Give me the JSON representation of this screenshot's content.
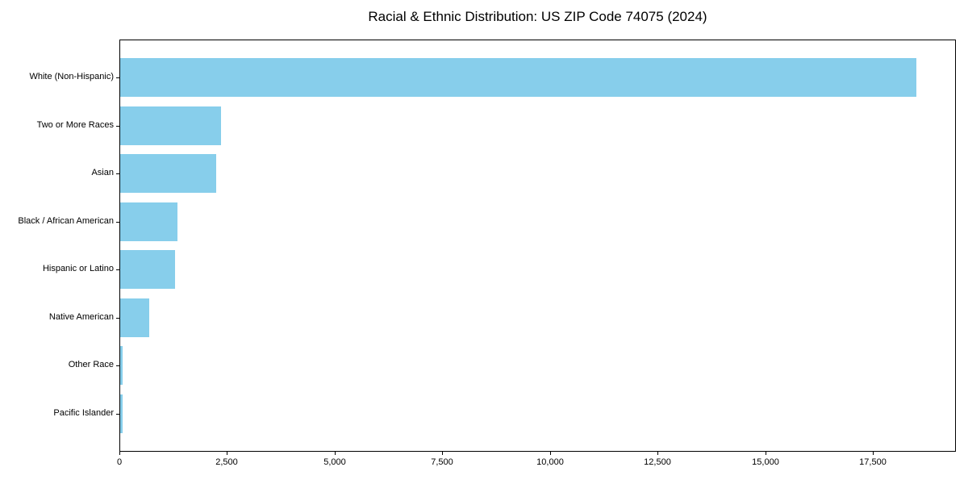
{
  "chart_data": {
    "type": "bar",
    "orientation": "horizontal",
    "title": "Racial & Ethnic Distribution: US ZIP Code 74075 (2024)",
    "categories": [
      "White (Non-Hispanic)",
      "Two or More Races",
      "Asian",
      "Black / African American",
      "Hispanic or Latino",
      "Native American",
      "Other Race",
      "Pacific Islander"
    ],
    "values": [
      18500,
      2340,
      2230,
      1330,
      1270,
      675,
      55,
      50
    ],
    "xlabel": "",
    "ylabel": "",
    "xlim": [
      0,
      19430
    ],
    "x_ticks": [
      0,
      2500,
      5000,
      7500,
      10000,
      12500,
      15000,
      17500
    ],
    "x_tick_labels": [
      "0",
      "2,500",
      "5,000",
      "7,500",
      "10,000",
      "12,500",
      "15,000",
      "17,500"
    ],
    "grid": false,
    "legend": null,
    "bar_color": "#87CEEB",
    "axis_color": "#000000",
    "text_color": "#000000"
  }
}
